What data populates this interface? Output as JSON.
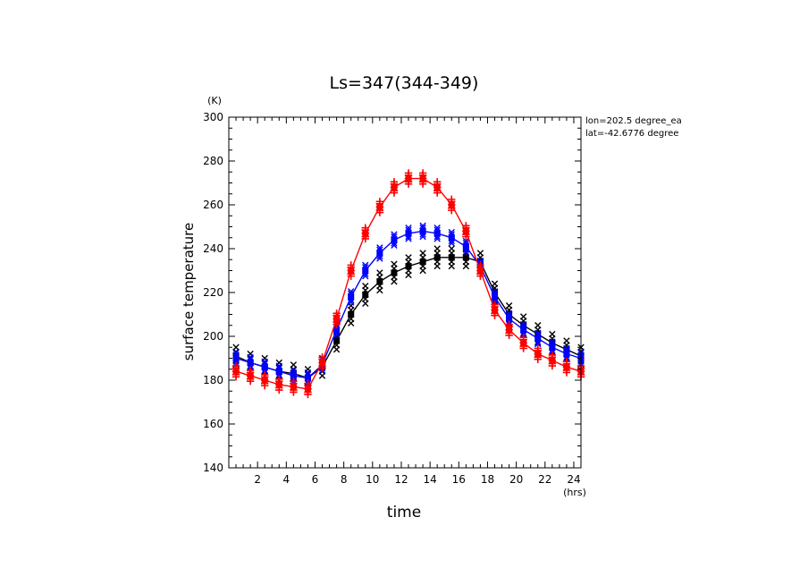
{
  "chart_data": {
    "type": "line",
    "title": "Ls=347(344-349)",
    "xlabel": "time",
    "ylabel": "surface temperature",
    "x_unit": "(hrs)",
    "y_unit": "(K)",
    "xlim": [
      0.0,
      24.5
    ],
    "ylim": [
      140,
      300
    ],
    "x_ticks": [
      2,
      4,
      6,
      8,
      10,
      12,
      14,
      16,
      18,
      20,
      22,
      24
    ],
    "y_ticks": [
      140,
      160,
      180,
      200,
      220,
      240,
      260,
      280,
      300
    ],
    "annotations": [
      "lon=202.5 degree_ea",
      "lat=-42.6776 degree"
    ],
    "x": [
      0.5,
      1.5,
      2.5,
      3.5,
      4.5,
      5.5,
      6.5,
      7.5,
      8.5,
      9.5,
      10.5,
      11.5,
      12.5,
      13.5,
      14.5,
      15.5,
      16.5,
      17.5,
      18.5,
      19.5,
      20.5,
      21.5,
      22.5,
      23.5,
      24.5
    ],
    "series": [
      {
        "color": "#000000",
        "marker": "x",
        "values": [
          191,
          188,
          186,
          184,
          183,
          181,
          186,
          198,
          210,
          219,
          225,
          229,
          232,
          234,
          236,
          236,
          236,
          234,
          220,
          210,
          205,
          201,
          197,
          194,
          191
        ],
        "scatter_offsets": [
          0,
          -2,
          2,
          -4,
          4
        ]
      },
      {
        "color": "#0000ff",
        "marker": "x",
        "values": [
          190,
          188,
          186,
          184,
          182,
          181,
          187,
          203,
          218,
          230,
          238,
          244,
          247,
          248,
          247,
          245,
          241,
          232,
          218,
          208,
          203,
          199,
          195,
          192,
          190
        ],
        "scatter_offsets": [
          0,
          -1.5,
          1.5,
          -2.5,
          2.5
        ]
      },
      {
        "color": "#ff0000",
        "marker": "+",
        "values": [
          184,
          182,
          180,
          178,
          177,
          176,
          188,
          208,
          230,
          247,
          259,
          268,
          272,
          272,
          268,
          260,
          248,
          230,
          212,
          203,
          197,
          192,
          189,
          186,
          184
        ],
        "scatter_offsets": [
          0,
          -1.5,
          1.5,
          -2.5,
          2.5
        ]
      }
    ]
  }
}
